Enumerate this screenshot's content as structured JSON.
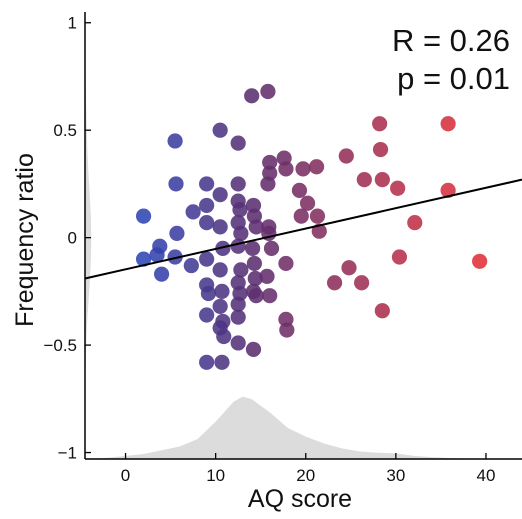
{
  "chart_data": {
    "type": "scatter",
    "title": "",
    "xlabel": "AQ score",
    "ylabel": "Frequency ratio",
    "xlim": [
      -4.5,
      44
    ],
    "ylim": [
      -1.03,
      1.05
    ],
    "x_ticks": [
      0,
      10,
      20,
      30,
      40
    ],
    "y_ticks": [
      1,
      0.5,
      0,
      -0.5,
      -1
    ],
    "x_tick_labels": [
      "0",
      "10",
      "20",
      "30",
      "40"
    ],
    "y_tick_labels": [
      "1",
      "0.5",
      "0",
      "−0.5",
      "−1"
    ],
    "annotations": [
      "R = 0.26",
      "p = 0.01"
    ],
    "grid": false,
    "colors": {
      "low": "#2f45b5",
      "mid": "#5a2f70",
      "high": "#e0303a",
      "density": "#dcdcdc",
      "line": "#000000"
    },
    "regression": {
      "x": [
        -4.5,
        44
      ],
      "y": [
        -0.19,
        0.27
      ]
    },
    "density_y": {
      "points": [
        [
          1.05,
          0.0
        ],
        [
          0.9,
          0.01
        ],
        [
          0.8,
          0.05
        ],
        [
          0.7,
          0.12
        ],
        [
          0.6,
          0.2
        ],
        [
          0.5,
          0.28
        ],
        [
          0.4,
          0.38
        ],
        [
          0.3,
          0.55
        ],
        [
          0.2,
          0.75
        ],
        [
          0.1,
          0.92
        ],
        [
          0.0,
          1.0
        ],
        [
          -0.1,
          0.93
        ],
        [
          -0.2,
          0.78
        ],
        [
          -0.3,
          0.55
        ],
        [
          -0.4,
          0.32
        ],
        [
          -0.5,
          0.18
        ],
        [
          -0.6,
          0.08
        ],
        [
          -0.7,
          0.04
        ],
        [
          -0.8,
          0.015
        ],
        [
          -0.9,
          0.005
        ],
        [
          -1.03,
          0.0
        ]
      ],
      "max_width_x": 0.7
    },
    "density_x": {
      "points": [
        [
          -4.5,
          0.01
        ],
        [
          -2,
          0.02
        ],
        [
          0,
          0.05
        ],
        [
          2,
          0.08
        ],
        [
          4,
          0.14
        ],
        [
          6,
          0.2
        ],
        [
          8,
          0.32
        ],
        [
          10,
          0.6
        ],
        [
          12,
          0.92
        ],
        [
          13,
          1.0
        ],
        [
          14,
          0.96
        ],
        [
          16,
          0.75
        ],
        [
          18,
          0.5
        ],
        [
          20,
          0.36
        ],
        [
          22,
          0.25
        ],
        [
          24,
          0.17
        ],
        [
          26,
          0.12
        ],
        [
          28,
          0.1
        ],
        [
          30,
          0.09
        ],
        [
          32,
          0.05
        ],
        [
          34,
          0.03
        ],
        [
          36,
          0.015
        ],
        [
          40,
          0.0
        ],
        [
          44,
          0.0
        ]
      ],
      "max_height_y": 0.29
    },
    "points": [
      {
        "x": 2,
        "y": 0.1
      },
      {
        "x": 2,
        "y": -0.1
      },
      {
        "x": 3.5,
        "y": -0.08
      },
      {
        "x": 3.8,
        "y": -0.04
      },
      {
        "x": 4,
        "y": -0.17
      },
      {
        "x": 5.5,
        "y": 0.45
      },
      {
        "x": 5.6,
        "y": 0.25
      },
      {
        "x": 5.7,
        "y": 0.02
      },
      {
        "x": 5.5,
        "y": -0.09
      },
      {
        "x": 7.3,
        "y": -0.13
      },
      {
        "x": 7.5,
        "y": 0.12
      },
      {
        "x": 9,
        "y": 0.25
      },
      {
        "x": 9,
        "y": 0.15
      },
      {
        "x": 9,
        "y": 0.07
      },
      {
        "x": 9,
        "y": -0.1
      },
      {
        "x": 9,
        "y": -0.22
      },
      {
        "x": 9.2,
        "y": -0.26
      },
      {
        "x": 9,
        "y": -0.36
      },
      {
        "x": 9,
        "y": -0.58
      },
      {
        "x": 10.5,
        "y": 0.5
      },
      {
        "x": 10.5,
        "y": 0.2
      },
      {
        "x": 10.5,
        "y": 0.05
      },
      {
        "x": 10.8,
        "y": -0.05
      },
      {
        "x": 10.5,
        "y": -0.15
      },
      {
        "x": 10.7,
        "y": -0.25
      },
      {
        "x": 10.5,
        "y": -0.32
      },
      {
        "x": 10.8,
        "y": -0.39
      },
      {
        "x": 10.5,
        "y": -0.42
      },
      {
        "x": 10.9,
        "y": -0.46
      },
      {
        "x": 10.7,
        "y": -0.58
      },
      {
        "x": 12.5,
        "y": 0.44
      },
      {
        "x": 12.5,
        "y": 0.25
      },
      {
        "x": 12.5,
        "y": 0.17
      },
      {
        "x": 12.7,
        "y": 0.13
      },
      {
        "x": 12.5,
        "y": 0.07
      },
      {
        "x": 12.8,
        "y": 0.02
      },
      {
        "x": 12.5,
        "y": -0.04
      },
      {
        "x": 12.8,
        "y": -0.15
      },
      {
        "x": 12.5,
        "y": -0.21
      },
      {
        "x": 12.7,
        "y": -0.26
      },
      {
        "x": 12.5,
        "y": -0.31
      },
      {
        "x": 12.5,
        "y": -0.37
      },
      {
        "x": 12.5,
        "y": -0.49
      },
      {
        "x": 14,
        "y": 0.66
      },
      {
        "x": 14.2,
        "y": 0.15
      },
      {
        "x": 14.3,
        "y": 0.1
      },
      {
        "x": 14.5,
        "y": 0.05
      },
      {
        "x": 14.1,
        "y": -0.05
      },
      {
        "x": 14.3,
        "y": -0.12
      },
      {
        "x": 14.4,
        "y": -0.19
      },
      {
        "x": 14.2,
        "y": -0.25
      },
      {
        "x": 14.5,
        "y": -0.27
      },
      {
        "x": 14.2,
        "y": -0.52
      },
      {
        "x": 15.8,
        "y": 0.68
      },
      {
        "x": 16,
        "y": 0.35
      },
      {
        "x": 16,
        "y": 0.3
      },
      {
        "x": 15.8,
        "y": 0.25
      },
      {
        "x": 15.9,
        "y": 0.05
      },
      {
        "x": 15.9,
        "y": 0.02
      },
      {
        "x": 16.2,
        "y": -0.05
      },
      {
        "x": 15.7,
        "y": -0.18
      },
      {
        "x": 16,
        "y": -0.27
      },
      {
        "x": 17.6,
        "y": 0.37
      },
      {
        "x": 17.8,
        "y": 0.32
      },
      {
        "x": 17.8,
        "y": -0.12
      },
      {
        "x": 17.8,
        "y": -0.38
      },
      {
        "x": 17.9,
        "y": -0.43
      },
      {
        "x": 19.3,
        "y": 0.22
      },
      {
        "x": 19.5,
        "y": 0.1
      },
      {
        "x": 19.7,
        "y": 0.32
      },
      {
        "x": 20.2,
        "y": 0.16
      },
      {
        "x": 21.2,
        "y": 0.33
      },
      {
        "x": 21.3,
        "y": 0.1
      },
      {
        "x": 21.5,
        "y": 0.03
      },
      {
        "x": 23.2,
        "y": -0.21
      },
      {
        "x": 24.5,
        "y": 0.38
      },
      {
        "x": 24.8,
        "y": -0.14
      },
      {
        "x": 26.2,
        "y": -0.21
      },
      {
        "x": 26.5,
        "y": 0.27
      },
      {
        "x": 28.2,
        "y": 0.53
      },
      {
        "x": 28.3,
        "y": 0.41
      },
      {
        "x": 28.5,
        "y": 0.27
      },
      {
        "x": 28.5,
        "y": -0.34
      },
      {
        "x": 30.2,
        "y": 0.23
      },
      {
        "x": 30.4,
        "y": -0.09
      },
      {
        "x": 32.1,
        "y": 0.07
      },
      {
        "x": 35.8,
        "y": 0.53
      },
      {
        "x": 35.8,
        "y": 0.22
      },
      {
        "x": 39.3,
        "y": -0.11
      }
    ]
  }
}
